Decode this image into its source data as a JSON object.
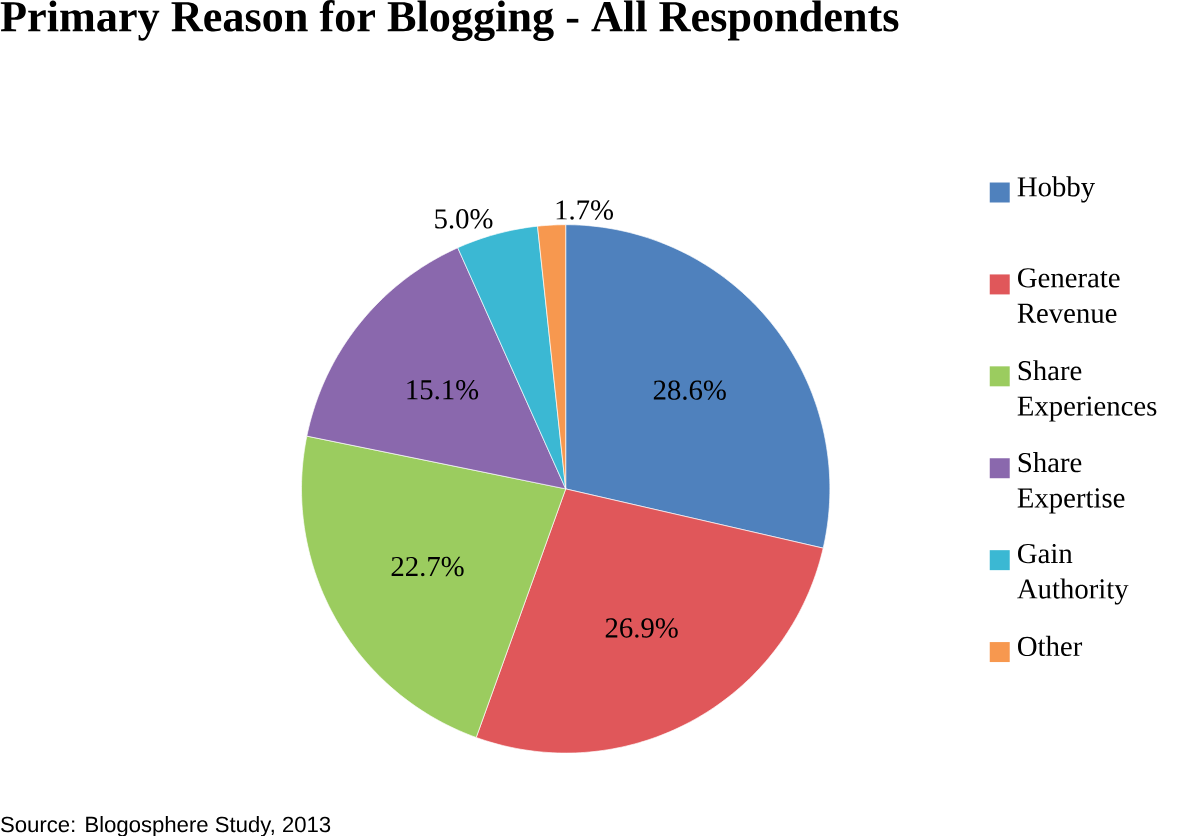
{
  "chart_data": {
    "type": "pie",
    "title": "Primary Reason for Blogging - All Respondents",
    "categories": [
      "Hobby",
      "Generate Revenue",
      "Share Experiences",
      "Share Expertise",
      "Gain Authority",
      "Other"
    ],
    "values": [
      28.6,
      26.9,
      22.7,
      15.1,
      5.0,
      1.7
    ],
    "colors": [
      "#4f81bd",
      "#e0575a",
      "#9bcc5f",
      "#8a68ad",
      "#3bb8d3",
      "#f7984f"
    ],
    "value_labels": [
      "28.6%",
      "26.9%",
      "22.7%",
      "15.1%",
      "5.0%",
      "1.7%"
    ],
    "legend": "right",
    "annotations": [
      "Source: Blogosphere Study, 2013"
    ]
  }
}
